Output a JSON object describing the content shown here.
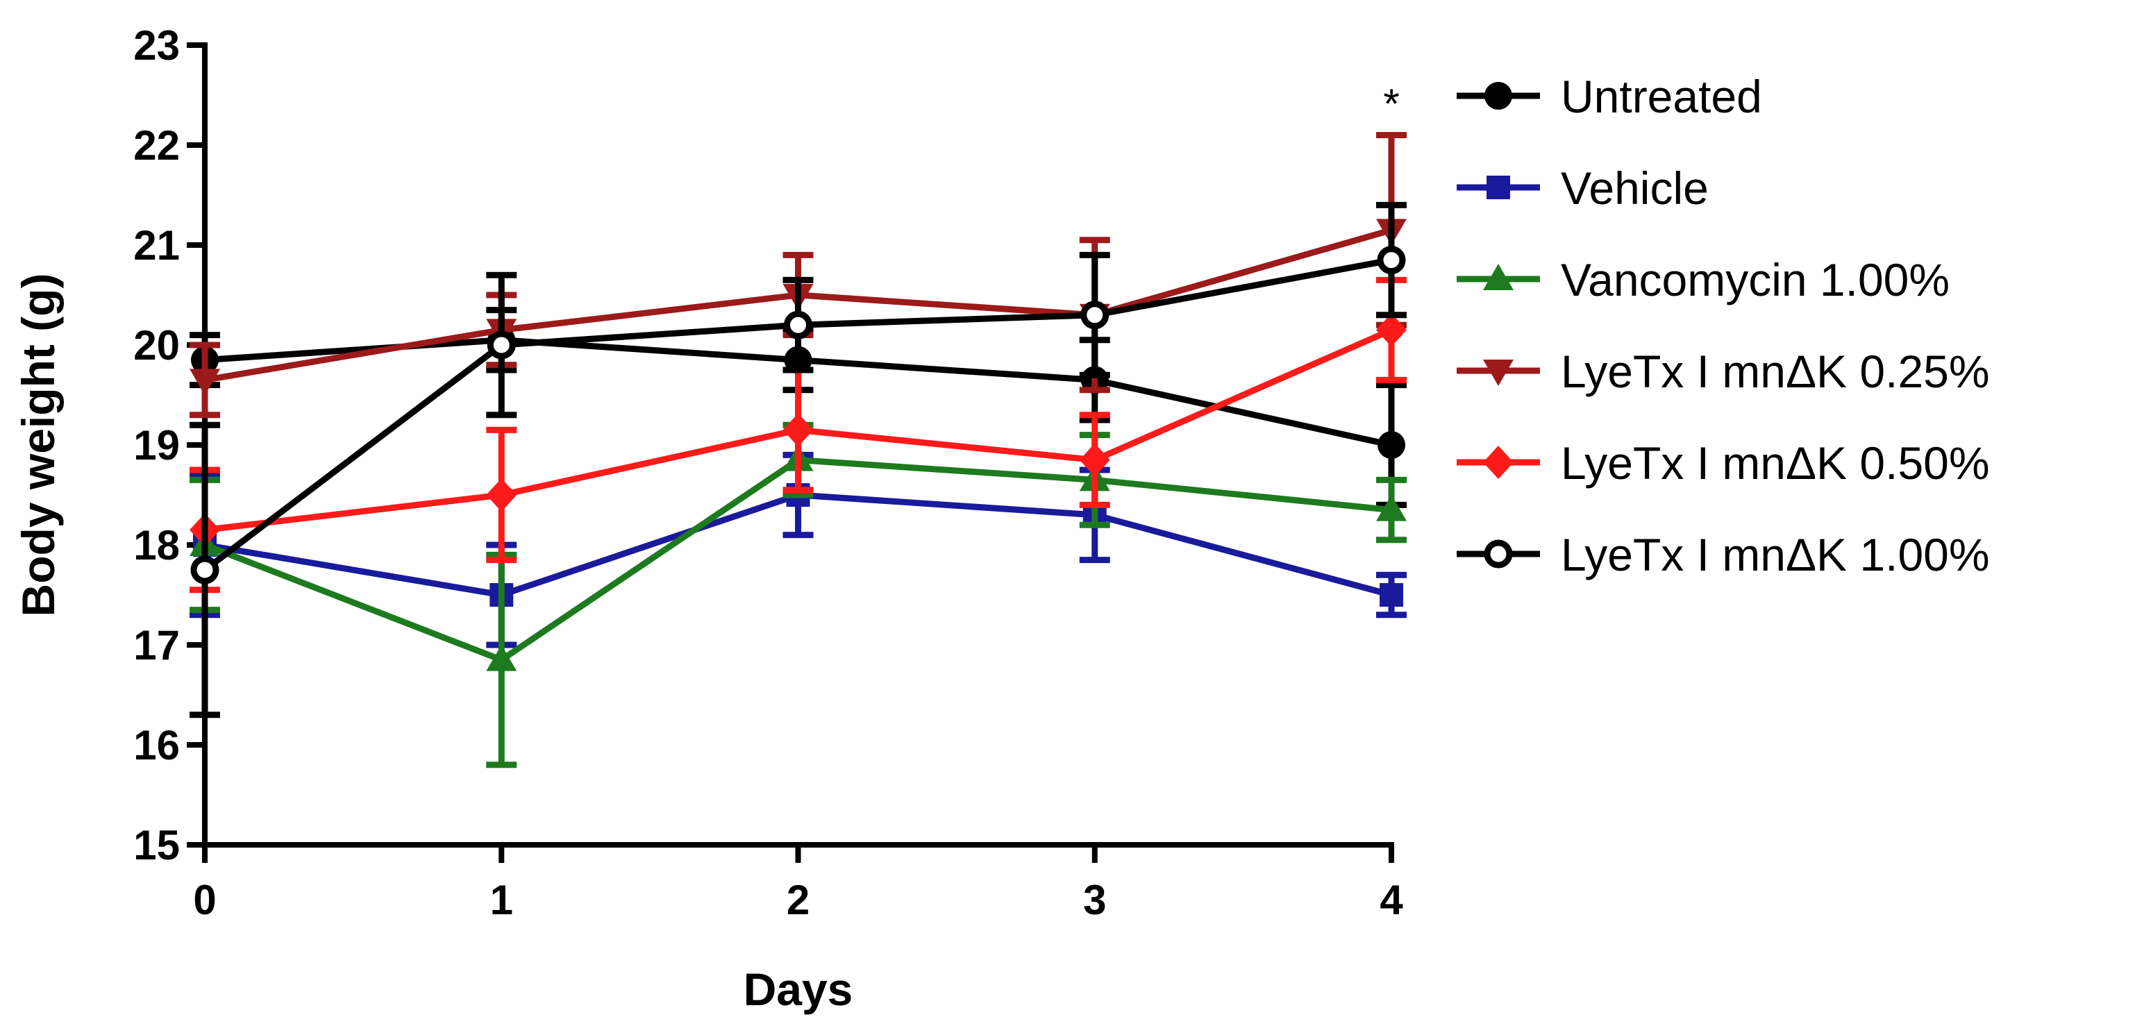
{
  "chart_data": {
    "type": "line",
    "title": "",
    "xlabel": "Days",
    "ylabel": "Body weight (g)",
    "x": [
      0,
      1,
      2,
      3,
      4
    ],
    "xticks": [
      "0",
      "1",
      "2",
      "3",
      "4"
    ],
    "yticks": [
      "15",
      "16",
      "17",
      "18",
      "19",
      "20",
      "21",
      "22",
      "23"
    ],
    "xlim": [
      0,
      4
    ],
    "ylim": [
      15,
      23
    ],
    "grid": false,
    "legend_position": "right",
    "annotations": [
      {
        "text": "*",
        "x": 4,
        "y": 22.55
      }
    ],
    "series": [
      {
        "name": "Untreated",
        "color": "#000000",
        "marker": "circle",
        "values": [
          19.85,
          20.05,
          19.85,
          19.65,
          19.0
        ],
        "errors": [
          0.25,
          0.3,
          0.3,
          0.4,
          0.6
        ]
      },
      {
        "name": "Vehicle",
        "color": "#1a1a9c",
        "marker": "square",
        "values": [
          18.0,
          17.5,
          18.5,
          18.3,
          17.5
        ],
        "errors": [
          0.7,
          0.5,
          0.4,
          0.45,
          0.2
        ]
      },
      {
        "name": "Vancomycin 1.00%",
        "color": "#1e7a1e",
        "marker": "triangle-up",
        "values": [
          18.0,
          16.85,
          18.85,
          18.65,
          18.35
        ],
        "errors": [
          0.65,
          1.05,
          0.35,
          0.45,
          0.3
        ]
      },
      {
        "name": "LyeTx I mnΔK 0.25%",
        "color": "#9c1a1a",
        "marker": "triangle-down",
        "values": [
          19.65,
          20.15,
          20.5,
          20.3,
          21.15
        ],
        "errors": [
          0.35,
          0.35,
          0.4,
          0.75,
          0.95
        ]
      },
      {
        "name": "LyeTx I mnΔK 0.50%",
        "color": "#ff1a1a",
        "marker": "diamond",
        "values": [
          18.15,
          18.5,
          19.15,
          18.85,
          20.15
        ],
        "errors": [
          0.6,
          0.65,
          0.6,
          0.45,
          0.5
        ]
      },
      {
        "name": "LyeTx I mnΔK 1.00%",
        "color": "#000000",
        "marker": "open-circle",
        "values": [
          17.75,
          20.0,
          20.2,
          20.3,
          20.85
        ],
        "errors": [
          1.45,
          0.7,
          0.45,
          0.6,
          0.55
        ]
      }
    ]
  }
}
